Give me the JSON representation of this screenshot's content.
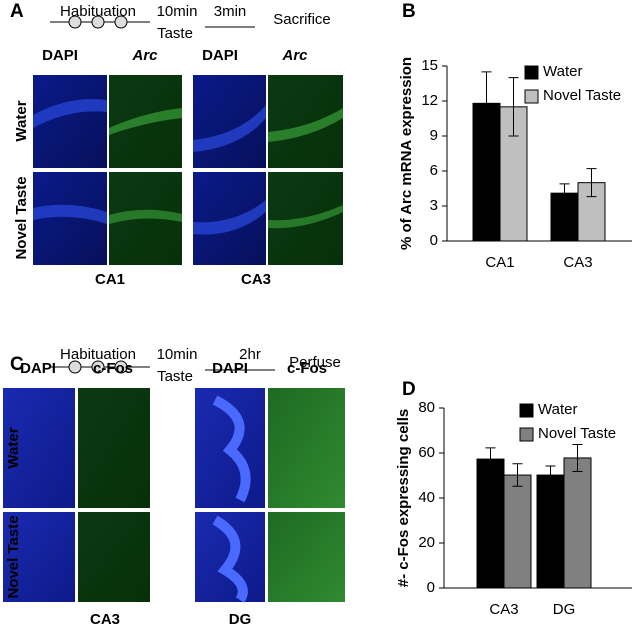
{
  "panel_labels": [
    "A",
    "B",
    "C",
    "D"
  ],
  "panel_a": {
    "timeline": {
      "start": "Habituation",
      "time1": "10min",
      "stimulus": "Taste",
      "time2": "3min",
      "end": "Sacrifice"
    },
    "columns": [
      "DAPI",
      "Arc",
      "DAPI",
      "Arc"
    ],
    "rows": [
      "Water",
      "Novel Taste"
    ],
    "regions": [
      "CA1",
      "CA3"
    ]
  },
  "panel_c": {
    "timeline": {
      "start": "Habituation",
      "time1": "10min",
      "stimulus": "Taste",
      "time2": "2hr",
      "end": "Perfuse"
    },
    "columns": [
      "DAPI",
      "c-Fos",
      "DAPI",
      "c-Fos"
    ],
    "rows": [
      "Water",
      "Novel Taste"
    ],
    "regions": [
      "CA3",
      "DG"
    ]
  },
  "chart_data": [
    {
      "type": "bar",
      "ylabel": "% of Arc mRNA expression",
      "categories": [
        "CA1",
        "CA3"
      ],
      "series": [
        {
          "name": "Water",
          "color": "#000000",
          "values": [
            11.8,
            4.1
          ],
          "errors": [
            2.7,
            0.8
          ]
        },
        {
          "name": "Novel Taste",
          "color": "#bfbfbf",
          "values": [
            11.5,
            5.0
          ],
          "errors": [
            2.5,
            1.2
          ]
        }
      ],
      "ylim": [
        0,
        15
      ],
      "yticks": [
        0,
        3,
        6,
        9,
        12,
        15
      ]
    },
    {
      "type": "bar",
      "ylabel": "#- c-Fos expressing cells",
      "categories": [
        "CA3",
        "DG"
      ],
      "series": [
        {
          "name": "Water",
          "color": "#000000",
          "values": [
            57.3,
            50.2
          ],
          "errors": [
            5,
            4
          ]
        },
        {
          "name": "Novel Taste",
          "color": "#808080",
          "values": [
            50.2,
            57.8
          ],
          "errors": [
            5,
            6
          ]
        }
      ],
      "ylim": [
        0,
        80
      ],
      "yticks": [
        0,
        20,
        40,
        60,
        80
      ]
    }
  ]
}
